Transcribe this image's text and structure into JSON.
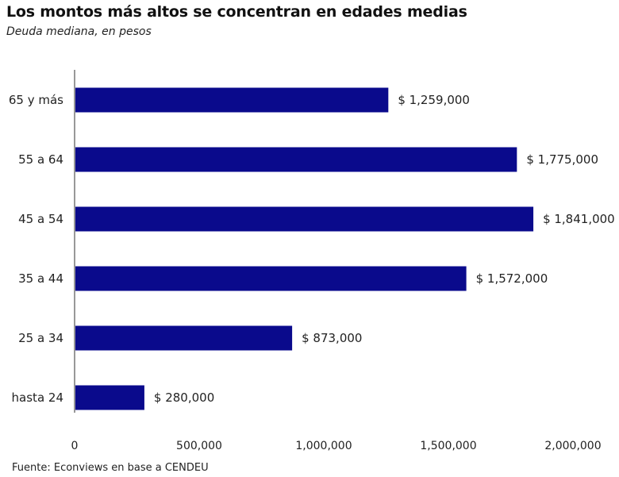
{
  "header": {
    "title": "Los montos más altos se concentran en edades medias",
    "subtitle": "Deuda mediana, en pesos"
  },
  "footer": {
    "source": "Fuente: Econviews en base a CENDEU"
  },
  "colors": {
    "bar": "#0a0a8c",
    "axis": "#777777",
    "text": "#222222"
  },
  "chart_data": {
    "type": "bar",
    "orientation": "horizontal",
    "title": "Los montos más altos se concentran en edades medias",
    "subtitle": "Deuda mediana, en pesos",
    "xlabel": "",
    "ylabel": "",
    "categories": [
      "65 y más",
      "55 a 64",
      "45 a 54",
      "35 a 44",
      "25 a 34",
      "hasta 24"
    ],
    "values": [
      1259000,
      1775000,
      1841000,
      1572000,
      873000,
      280000
    ],
    "value_labels": [
      "$ 1,259,000",
      "$ 1,775,000",
      "$ 1,841,000",
      "$ 1,572,000",
      "$ 873,000",
      "$ 280,000"
    ],
    "xlim": [
      0,
      2000000
    ],
    "x_ticks": [
      0,
      500000,
      1000000,
      1500000,
      2000000
    ],
    "x_tick_labels": [
      "0",
      "500,000",
      "1,000,000",
      "1,500,000",
      "2,000,000"
    ],
    "grid": false,
    "legend": "none"
  }
}
